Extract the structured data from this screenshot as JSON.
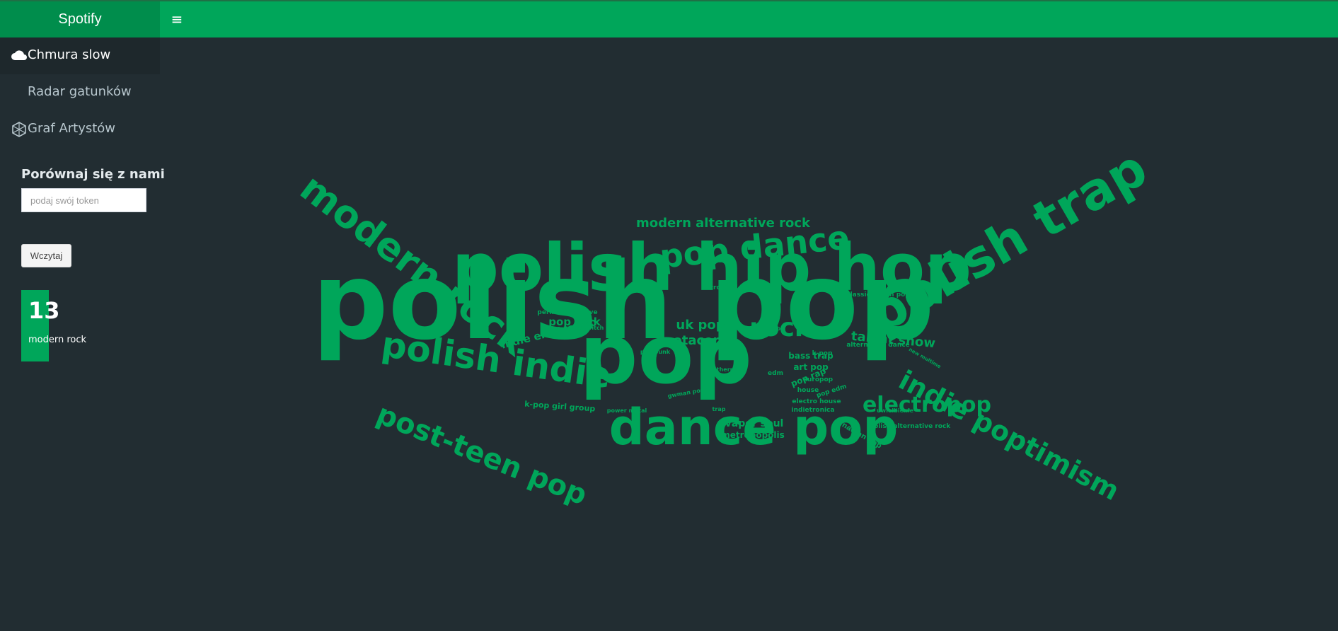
{
  "app": {
    "brand": "Spotify",
    "accent": "#00a65a",
    "background": "#222d32"
  },
  "header": {
    "menu_icon": "hamburger-icon"
  },
  "sidebar": {
    "items": [
      {
        "label": "Chmura slow",
        "icon": "cloud-icon",
        "active": true
      },
      {
        "label": "Radar gatunków",
        "icon": "",
        "active": false
      },
      {
        "label": "Graf Artystów",
        "icon": "network-icon",
        "active": false
      }
    ]
  },
  "compare": {
    "title": "Porównaj się z nami",
    "placeholder": "podaj swój token",
    "button_label": "Wczytaj"
  },
  "value_box": {
    "value": "13",
    "caption": "modern rock"
  },
  "wordcloud": {
    "words": [
      {
        "text": "polish pop",
        "size": 150,
        "rotate": 0
      },
      {
        "text": "polish hip hop",
        "size": 92,
        "rotate": 0
      },
      {
        "text": "pop",
        "size": 115,
        "rotate": 0
      },
      {
        "text": "dance pop",
        "size": 70,
        "rotate": 0
      },
      {
        "text": "polish trap",
        "size": 72,
        "rotate": 30
      },
      {
        "text": "modern rock",
        "size": 54,
        "rotate": -37
      },
      {
        "text": "polish indie",
        "size": 50,
        "rotate": -8
      },
      {
        "text": "post-teen pop",
        "size": 40,
        "rotate": -22
      },
      {
        "text": "indie poptimism",
        "size": 38,
        "rotate": -28
      },
      {
        "text": "pop dance",
        "size": 46,
        "rotate": 6
      },
      {
        "text": "electropop",
        "size": 30,
        "rotate": 0
      },
      {
        "text": "rock",
        "size": 36,
        "rotate": 0
      },
      {
        "text": "modern alternative rock",
        "size": 18,
        "rotate": 0
      },
      {
        "text": "talent show",
        "size": 18,
        "rotate": -5
      },
      {
        "text": "uk pop",
        "size": 18,
        "rotate": 0
      },
      {
        "text": "otacore",
        "size": 18,
        "rotate": 0
      },
      {
        "text": "pop rock",
        "size": 15,
        "rotate": 0
      },
      {
        "text": "indie electropop",
        "size": 15,
        "rotate": 14
      },
      {
        "text": "vapor soul",
        "size": 14,
        "rotate": 0
      },
      {
        "text": "metropopolis",
        "size": 12,
        "rotate": 0
      },
      {
        "text": "bass trap",
        "size": 12,
        "rotate": 0
      },
      {
        "text": "art pop",
        "size": 12,
        "rotate": 0
      },
      {
        "text": "pop rap",
        "size": 12,
        "rotate": 22
      },
      {
        "text": "k-pop girl group",
        "size": 11,
        "rotate": -4
      },
      {
        "text": "canadian pop",
        "size": 10,
        "rotate": -30
      },
      {
        "text": "polish alternative rock",
        "size": 9,
        "rotate": 0
      },
      {
        "text": "indietronica",
        "size": 9,
        "rotate": 0
      },
      {
        "text": "permanent wave",
        "size": 9,
        "rotate": 0
      },
      {
        "text": "tropical house",
        "size": 9,
        "rotate": 0
      },
      {
        "text": "classic polish pop",
        "size": 9,
        "rotate": 0
      },
      {
        "text": "alternative dance",
        "size": 9,
        "rotate": 0
      },
      {
        "text": "europop",
        "size": 9,
        "rotate": 0
      },
      {
        "text": "house",
        "size": 9,
        "rotate": 0
      },
      {
        "text": "electro house",
        "size": 9,
        "rotate": 0
      },
      {
        "text": "k-pop",
        "size": 9,
        "rotate": 0
      },
      {
        "text": "pop edm",
        "size": 9,
        "rotate": 18
      },
      {
        "text": "edm",
        "size": 9,
        "rotate": 0
      },
      {
        "text": "etherpop",
        "size": 8,
        "rotate": 0
      },
      {
        "text": "pop punk",
        "size": 8,
        "rotate": 0
      },
      {
        "text": "power metal",
        "size": 8,
        "rotate": 0
      },
      {
        "text": "trap",
        "size": 8,
        "rotate": 0
      },
      {
        "text": "uwielbienie",
        "size": 8,
        "rotate": 0
      },
      {
        "text": "vapor twitch",
        "size": 8,
        "rotate": 0
      },
      {
        "text": "indie pop",
        "size": 8,
        "rotate": 0
      },
      {
        "text": "gwman pop",
        "size": 8,
        "rotate": 10
      },
      {
        "text": "new multime",
        "size": 7,
        "rotate": -30
      }
    ]
  }
}
